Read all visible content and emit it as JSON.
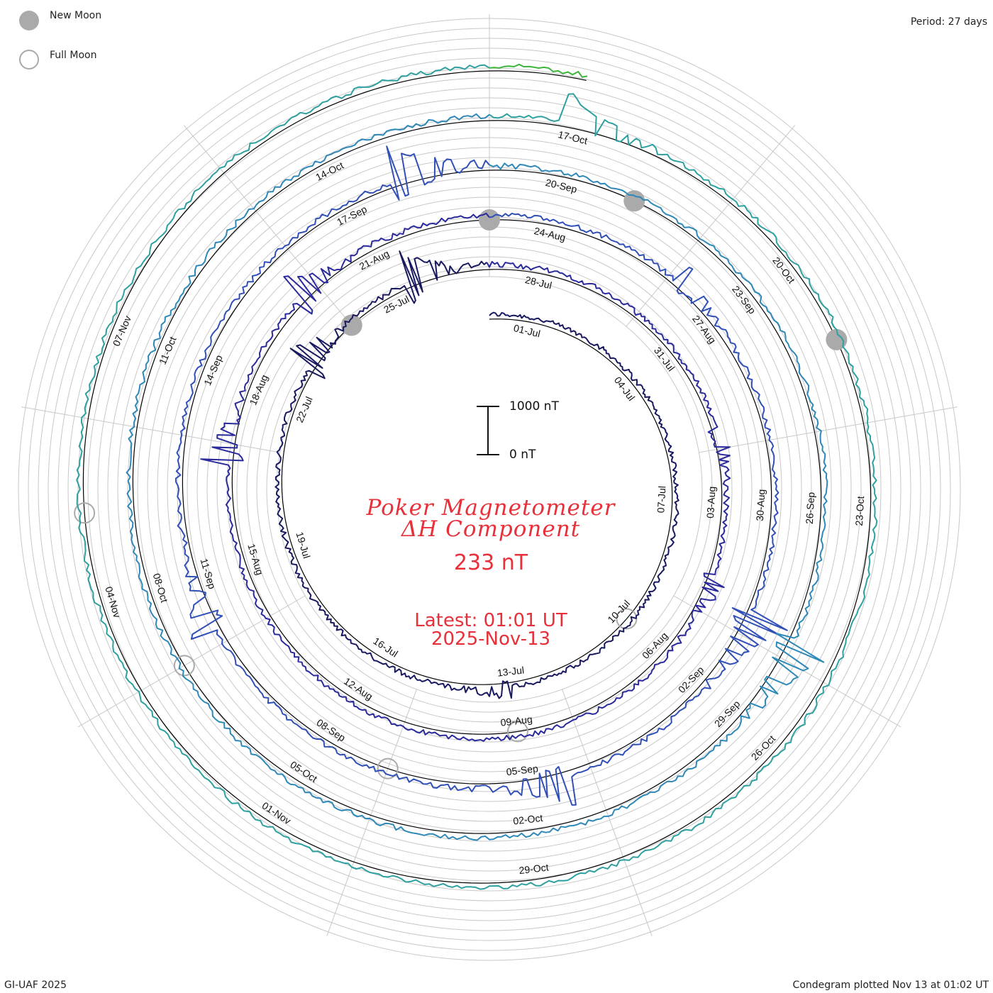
{
  "legend": {
    "new_moon_label": "New Moon",
    "full_moon_label": "Full Moon",
    "new_moon_icon": "filled-gray-circle",
    "full_moon_icon": "hollow-gray-circle",
    "moon_color": "#aaaaaa"
  },
  "header": {
    "period": "Period: 27 days"
  },
  "footer": {
    "credit": "GI-UAF 2025",
    "plotted": "Condegram plotted Nov 13 at 01:02 UT"
  },
  "title": {
    "line1": "Poker Magnetometer",
    "line2": "ΔH Component",
    "value": "233 nT",
    "latest": "Latest: 01:01 UT",
    "date": "2025-Nov-13",
    "color": "#e8303a"
  },
  "scale_bar": {
    "top_label": "1000 nT",
    "bottom_label": "0 nT"
  },
  "chart_data": {
    "type": "line",
    "subtype": "condegram-spiral",
    "period_days": 27,
    "start_date": "2025-06-30",
    "end_date": "2025-11-13",
    "date_labels": [
      "01-Jul",
      "04-Jul",
      "07-Jul",
      "10-Jul",
      "13-Jul",
      "16-Jul",
      "19-Jul",
      "22-Jul",
      "25-Jul",
      "28-Jul",
      "31-Jul",
      "03-Aug",
      "06-Aug",
      "09-Aug",
      "12-Aug",
      "15-Aug",
      "18-Aug",
      "21-Aug",
      "24-Aug",
      "27-Aug",
      "30-Aug",
      "02-Sep",
      "05-Sep",
      "08-Sep",
      "11-Sep",
      "14-Sep",
      "17-Sep",
      "20-Sep",
      "23-Sep",
      "26-Sep",
      "29-Sep",
      "02-Oct",
      "05-Oct",
      "08-Oct",
      "11-Oct",
      "14-Oct",
      "17-Oct",
      "20-Oct",
      "23-Oct",
      "26-Oct",
      "29-Oct",
      "01-Nov",
      "04-Nov",
      "07-Nov"
    ],
    "new_moons": [
      "2025-07-24",
      "2025-08-23",
      "2025-09-21",
      "2025-10-21"
    ],
    "full_moons": [
      "2025-07-10",
      "2025-08-09",
      "2025-09-07",
      "2025-10-07",
      "2025-11-05"
    ],
    "rotation_colors": [
      "#191960",
      "#2a2a9c",
      "#3050b8",
      "#2e88b8",
      "#2ea0a0",
      "#3cb43c",
      "#90c028",
      "#c8b010",
      "#b86e10",
      "#b83010",
      "#c01818"
    ]
  }
}
